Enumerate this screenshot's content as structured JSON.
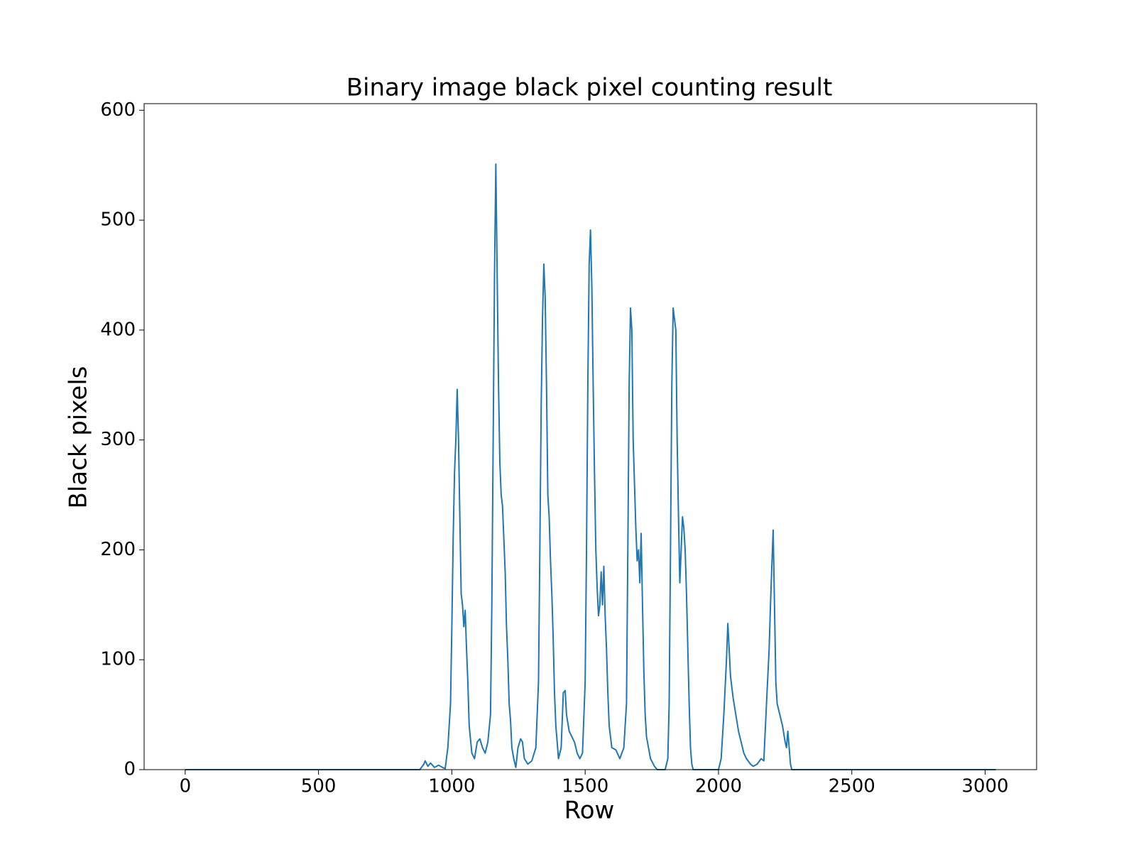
{
  "chart_data": {
    "type": "line",
    "title": "Binary image black pixel counting result",
    "xlabel": "Row",
    "ylabel": "Black pixels",
    "color": "#1f77b4",
    "xlim": [
      -154,
      3193
    ],
    "ylim": [
      0,
      606
    ],
    "xticks": [
      0,
      500,
      1000,
      1500,
      2000,
      2500,
      3000
    ],
    "yticks": [
      0,
      100,
      200,
      300,
      400,
      500,
      600
    ],
    "x": [
      0,
      880,
      895,
      900,
      910,
      920,
      935,
      950,
      965,
      975,
      985,
      995,
      1000,
      1005,
      1010,
      1015,
      1020,
      1025,
      1030,
      1035,
      1040,
      1045,
      1050,
      1055,
      1060,
      1065,
      1075,
      1085,
      1095,
      1105,
      1115,
      1125,
      1135,
      1145,
      1150,
      1155,
      1160,
      1165,
      1170,
      1175,
      1180,
      1185,
      1190,
      1195,
      1200,
      1205,
      1210,
      1215,
      1220,
      1225,
      1232,
      1240,
      1248,
      1258,
      1265,
      1272,
      1285,
      1300,
      1315,
      1325,
      1330,
      1335,
      1340,
      1345,
      1350,
      1355,
      1360,
      1365,
      1370,
      1375,
      1380,
      1385,
      1390,
      1395,
      1400,
      1410,
      1418,
      1425,
      1430,
      1440,
      1450,
      1460,
      1470,
      1480,
      1490,
      1500,
      1505,
      1510,
      1515,
      1520,
      1525,
      1530,
      1535,
      1540,
      1545,
      1550,
      1555,
      1560,
      1565,
      1570,
      1575,
      1580,
      1585,
      1590,
      1600,
      1615,
      1630,
      1645,
      1655,
      1660,
      1665,
      1670,
      1675,
      1680,
      1685,
      1690,
      1695,
      1700,
      1705,
      1710,
      1715,
      1720,
      1725,
      1730,
      1745,
      1760,
      1770,
      1800,
      1810,
      1815,
      1820,
      1825,
      1830,
      1835,
      1840,
      1845,
      1850,
      1855,
      1860,
      1865,
      1870,
      1875,
      1880,
      1885,
      1890,
      1895,
      1900,
      1905,
      2000,
      2010,
      2020,
      2030,
      2035,
      2040,
      2045,
      2055,
      2065,
      2075,
      2085,
      2095,
      2105,
      2120,
      2130,
      2145,
      2160,
      2170,
      2180,
      2190,
      2195,
      2200,
      2205,
      2210,
      2215,
      2220,
      2230,
      2240,
      2250,
      2255,
      2260,
      2265,
      2270,
      2275,
      3040
    ],
    "values": [
      0,
      0,
      5,
      8,
      3,
      6,
      2,
      4,
      2,
      1,
      20,
      60,
      130,
      210,
      270,
      300,
      346,
      300,
      230,
      160,
      150,
      130,
      145,
      110,
      80,
      40,
      15,
      10,
      25,
      28,
      20,
      15,
      25,
      50,
      150,
      300,
      450,
      551,
      450,
      350,
      280,
      250,
      240,
      210,
      180,
      130,
      100,
      60,
      45,
      20,
      10,
      2,
      20,
      28,
      25,
      10,
      5,
      8,
      20,
      80,
      200,
      330,
      410,
      460,
      430,
      350,
      250,
      230,
      190,
      160,
      120,
      70,
      40,
      25,
      10,
      20,
      70,
      72,
      50,
      35,
      30,
      25,
      15,
      10,
      15,
      80,
      200,
      350,
      460,
      491,
      440,
      350,
      270,
      200,
      165,
      140,
      150,
      180,
      150,
      185,
      140,
      110,
      70,
      40,
      20,
      18,
      10,
      20,
      60,
      200,
      350,
      420,
      400,
      300,
      260,
      220,
      190,
      200,
      170,
      215,
      150,
      90,
      50,
      30,
      10,
      3,
      0,
      0,
      10,
      60,
      200,
      350,
      420,
      410,
      400,
      300,
      230,
      170,
      200,
      230,
      220,
      200,
      160,
      110,
      60,
      20,
      5,
      0,
      0,
      10,
      50,
      100,
      133,
      110,
      85,
      65,
      50,
      35,
      25,
      15,
      10,
      5,
      3,
      5,
      10,
      8,
      60,
      110,
      150,
      185,
      218,
      150,
      80,
      60,
      50,
      40,
      25,
      20,
      35,
      20,
      5,
      0,
      0
    ]
  }
}
